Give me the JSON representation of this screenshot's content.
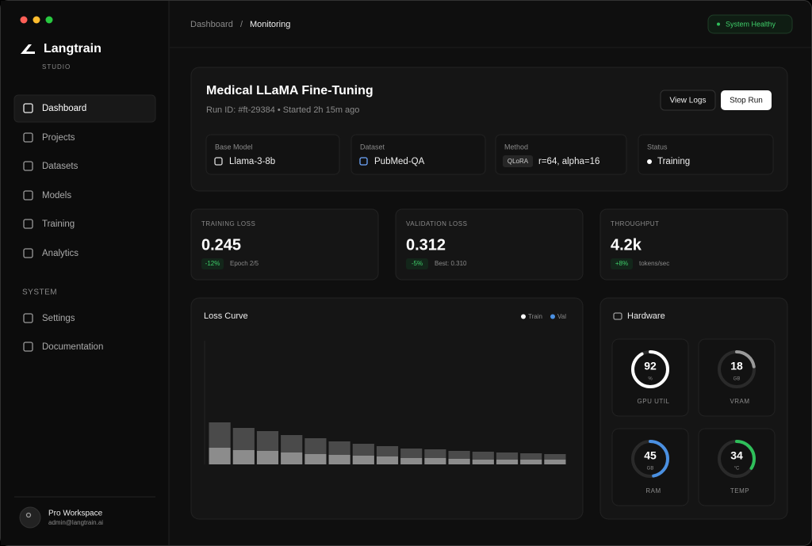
{
  "brand": {
    "name": "Langtrain",
    "sub": "STUDIO"
  },
  "nav": {
    "items": [
      "Dashboard",
      "Projects",
      "Datasets",
      "Models",
      "Training",
      "Analytics"
    ],
    "section": "SYSTEM",
    "system_items": [
      "Settings",
      "Documentation"
    ]
  },
  "user": {
    "name": "Pro Workspace",
    "email": "admin@langtrain.ai"
  },
  "header": {
    "breadcrumb": [
      "Dashboard",
      "Monitoring"
    ],
    "separator": "/",
    "status": "System Healthy"
  },
  "run": {
    "title": "Medical LLaMA Fine-Tuning",
    "subtitle": "Run ID: #ft-29384 • Started 2h 15m ago",
    "buttons": [
      "View Logs",
      "Stop Run"
    ],
    "info": [
      {
        "label": "Base Model",
        "value": "Llama-3-8b"
      },
      {
        "label": "Dataset",
        "value": "PubMed-QA"
      },
      {
        "label": "Method",
        "tag": "QLoRA",
        "value": "r=64, alpha=16"
      },
      {
        "label": "Status",
        "value": "Training"
      }
    ]
  },
  "metrics": [
    {
      "label": "TRAINING LOSS",
      "value": "0.245",
      "change": "-12%",
      "note": "Epoch 2/5"
    },
    {
      "label": "VALIDATION LOSS",
      "value": "0.312",
      "change": "-5%",
      "note": "Best: 0.310"
    },
    {
      "label": "THROUGHPUT",
      "value": "4.2k",
      "change": "+8%",
      "note": "tokens/sec"
    }
  ],
  "chart_data": {
    "type": "bar",
    "stacked": true,
    "title": "Loss Curve",
    "categories": [
      null,
      null,
      null,
      null,
      null,
      null,
      null,
      null,
      null,
      null,
      null,
      null,
      null,
      null,
      null
    ],
    "series": [
      {
        "name": "Train",
        "color": "#8c8c8c",
        "legend_color": "#ffffff",
        "values": [
          21,
          18,
          17,
          15,
          13,
          12,
          11,
          10,
          8,
          8,
          7,
          6,
          6,
          6,
          6
        ]
      },
      {
        "name": "Val",
        "color": "#4a4a4a",
        "legend_color": "#4a90e2",
        "values": [
          32,
          28,
          25,
          22,
          20,
          17,
          15,
          13,
          12,
          11,
          10,
          10,
          9,
          8,
          7
        ]
      }
    ],
    "ylim": [
      0,
      156
    ]
  },
  "hardware": {
    "title": "Hardware",
    "gauges": [
      {
        "value": 92,
        "unit": "%",
        "label": "GPU UTIL",
        "max": 100,
        "color": "#ffffff"
      },
      {
        "value": 18,
        "unit": "GB",
        "label": "VRAM",
        "max": 80,
        "color": "#9a9a9a"
      },
      {
        "value": 45,
        "unit": "GB",
        "label": "RAM",
        "max": 96,
        "color": "#4a90e2"
      },
      {
        "value": 34,
        "unit": "°C",
        "label": "TEMP",
        "max": 100,
        "color": "#2fbf5a"
      }
    ]
  }
}
